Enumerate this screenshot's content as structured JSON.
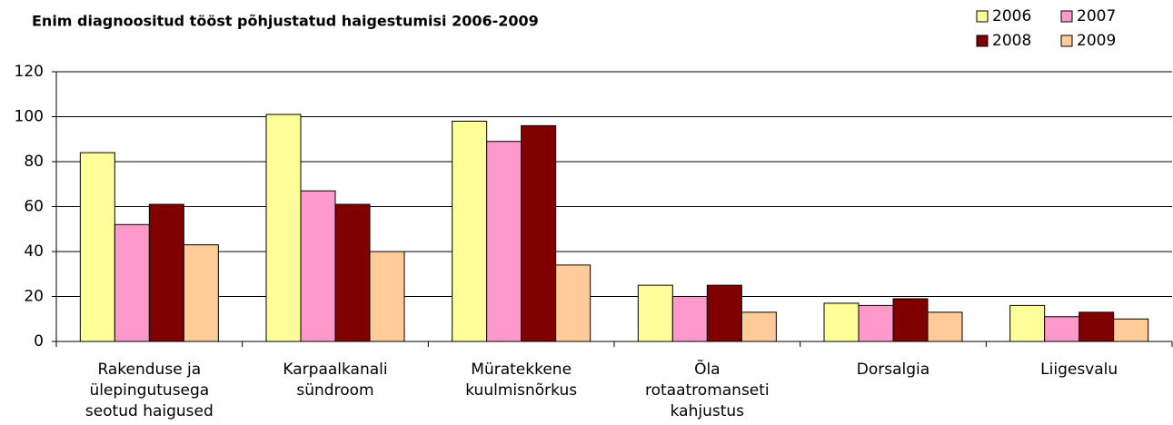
{
  "chart_data": {
    "type": "bar",
    "title": "Enim diagnoositud tööst põhjustatud haigestumisi 2006-2009",
    "categories": [
      [
        "Rakenduse ja",
        "ülepingutusega",
        "seotud haigused"
      ],
      [
        "Karpaalkanali",
        "sündroom"
      ],
      [
        "Müratekkene",
        "kuulmisnõrkus"
      ],
      [
        "Õla",
        "rotaatromanseti",
        "kahjustus"
      ],
      [
        "Dorsalgia"
      ],
      [
        "Liigesvalu"
      ]
    ],
    "series": [
      {
        "name": "2006",
        "color": "#ffff99",
        "values": [
          84,
          101,
          98,
          25,
          17,
          16
        ]
      },
      {
        "name": "2007",
        "color": "#ff99cc",
        "values": [
          52,
          67,
          89,
          20,
          16,
          11
        ]
      },
      {
        "name": "2008",
        "color": "#800000",
        "values": [
          61,
          61,
          96,
          25,
          19,
          13
        ]
      },
      {
        "name": "2009",
        "color": "#ffcc99",
        "values": [
          43,
          40,
          34,
          13,
          13,
          10
        ]
      }
    ],
    "ylim": [
      0,
      120
    ],
    "yticks": [
      0,
      20,
      40,
      60,
      80,
      100,
      120
    ],
    "grid": true,
    "legend": "top-right"
  }
}
